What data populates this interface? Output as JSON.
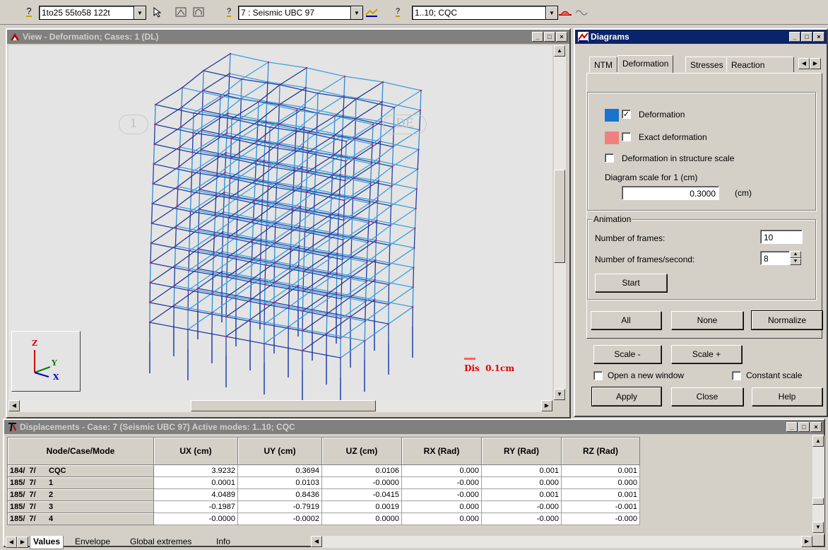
{
  "toolbar": {
    "selection_text": "1to25 55to58 122t",
    "case_text": "7 : Seismic UBC 97",
    "modes_text": "1..10; CQC",
    "help_glyph": "?"
  },
  "view_window": {
    "title": "View - Deformation; Cases: 1 (DL)",
    "grid_labels": [
      "1",
      "DE"
    ],
    "axis": {
      "z": "Z",
      "y": "Y",
      "x": "X"
    },
    "scale_legend": "Dis  0.1cm"
  },
  "diagrams": {
    "title": "Diagrams",
    "tabs": [
      "NTM",
      "Deformation",
      "Stresses",
      "Reaction"
    ],
    "selected_tab": "Deformation",
    "deformation_label": "Deformation",
    "deformation_checked": true,
    "deformation_color": "#1874cd",
    "exact_label": "Exact deformation",
    "exact_checked": false,
    "exact_color": "#f08080",
    "structure_scale_label": "Deformation in structure scale",
    "structure_scale_checked": false,
    "scale_label": "Diagram scale for 1   (cm)",
    "scale_value": "0.3000",
    "scale_unit": "(cm)",
    "animation": {
      "title": "Animation",
      "frames_label": "Number of frames:",
      "frames_value": "10",
      "fps_label": "Number of frames/second:",
      "fps_value": "8",
      "start_label": "Start"
    },
    "all_label": "All",
    "none_label": "None",
    "normalize_label": "Normalize",
    "scale_minus_label": "Scale -",
    "scale_plus_label": "Scale +",
    "open_new_window_label": "Open a new window",
    "open_new_window_checked": false,
    "constant_scale_label": "Constant scale",
    "constant_scale_checked": false,
    "apply_label": "Apply",
    "close_label": "Close",
    "help_label": "Help"
  },
  "displacements": {
    "title": "Displacements - Case: 7 (Seismic UBC 97) Active modes: 1..10; CQC",
    "columns": [
      "Node/Case/Mode",
      "UX (cm)",
      "UY (cm)",
      "UZ (cm)",
      "RX (Rad)",
      "RY (Rad)",
      "RZ (Rad)"
    ],
    "rows": [
      {
        "head": "184/  7/      CQC",
        "values": [
          "3.9232",
          "0.3694",
          "0.0106",
          "0.000",
          "0.001",
          "0.001"
        ]
      },
      {
        "head": "185/  7/      1",
        "values": [
          "0.0001",
          "0.0103",
          "-0.0000",
          "-0.000",
          "0.000",
          "0.000"
        ]
      },
      {
        "head": "185/  7/      2",
        "values": [
          "4.0489",
          "0.8436",
          "-0.0415",
          "-0.000",
          "0.001",
          "0.001"
        ]
      },
      {
        "head": "185/  7/      3",
        "values": [
          "-0.1987",
          "-0.7919",
          "0.0019",
          "0.000",
          "-0.000",
          "-0.001"
        ]
      },
      {
        "head": "185/  7/      4",
        "values": [
          "-0.0000",
          "-0.0002",
          "0.0000",
          "0.000",
          "-0.000",
          "-0.000"
        ]
      }
    ],
    "sheet_tabs": [
      "Values",
      "Envelope",
      "Global extremes",
      "Info"
    ],
    "active_sheet": "Values"
  }
}
